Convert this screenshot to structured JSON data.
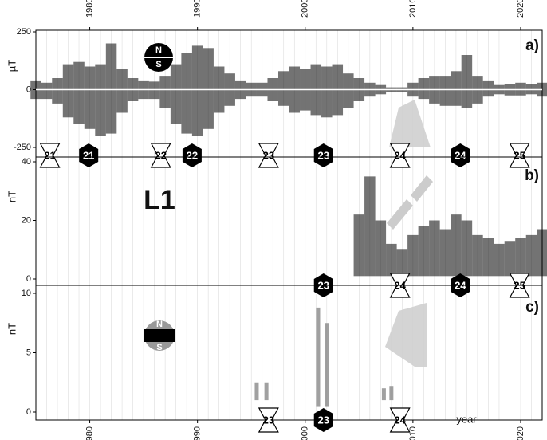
{
  "chart_data": [
    {
      "type": "range",
      "panel_label": "a)",
      "y_label": "µT",
      "color": "#000000",
      "xlim": [
        1975,
        2022
      ],
      "xticks": [
        1980,
        1990,
        2000,
        2010,
        2020
      ],
      "ylim": [
        -250,
        250
      ],
      "yticks": [
        -250,
        0,
        250
      ],
      "x": [
        1975,
        1976,
        1977,
        1978,
        1979,
        1980,
        1981,
        1982,
        1983,
        1984,
        1985,
        1986,
        1987,
        1988,
        1989,
        1990,
        1991,
        1992,
        1993,
        1994,
        1995,
        1996,
        1997,
        1998,
        1999,
        2000,
        2001,
        2002,
        2003,
        2004,
        2005,
        2006,
        2007,
        2008,
        2009,
        2010,
        2011,
        2012,
        2013,
        2014,
        2015,
        2016,
        2017,
        2018,
        2019,
        2020,
        2021,
        2022
      ],
      "low": [
        -40,
        -40,
        -60,
        -120,
        -150,
        -170,
        -200,
        -190,
        -100,
        -50,
        -40,
        -40,
        -80,
        -150,
        -190,
        -200,
        -170,
        -100,
        -70,
        -40,
        -30,
        -30,
        -50,
        -70,
        -100,
        -90,
        -110,
        -120,
        -110,
        -80,
        -50,
        -30,
        -20,
        -10,
        -10,
        -30,
        -40,
        -60,
        -70,
        -70,
        -80,
        -60,
        -30,
        -20,
        -25,
        -25,
        -20,
        -30
      ],
      "high": [
        40,
        30,
        50,
        110,
        120,
        100,
        110,
        200,
        90,
        50,
        40,
        35,
        60,
        110,
        160,
        190,
        180,
        100,
        70,
        40,
        30,
        30,
        50,
        80,
        100,
        90,
        110,
        100,
        110,
        70,
        50,
        30,
        20,
        10,
        10,
        30,
        50,
        60,
        60,
        80,
        150,
        60,
        40,
        20,
        25,
        30,
        25,
        30
      ],
      "minima": {
        "x": [
          1976.3,
          1986.6,
          1996.6,
          2008.8,
          2019.9
        ],
        "labels": [
          "21",
          "22",
          "23",
          "24",
          "25"
        ]
      },
      "maxima": {
        "x": [
          1979.9,
          1989.5,
          2001.7,
          2014.4
        ],
        "labels": [
          "21",
          "22",
          "23",
          "24"
        ]
      }
    },
    {
      "type": "range",
      "panel_label": "b)",
      "y_label": "nT",
      "annotation": "L1",
      "color": "#000000",
      "xlim": [
        1975,
        2022
      ],
      "ylim": [
        0,
        40
      ],
      "yticks": [
        0,
        20,
        40
      ],
      "x": [
        2005,
        2006,
        2007,
        2008,
        2009,
        2010,
        2011,
        2012,
        2013,
        2014,
        2015,
        2016,
        2017,
        2018,
        2019,
        2020,
        2021,
        2022
      ],
      "low": [
        1,
        1,
        1,
        1,
        1,
        1,
        1,
        1,
        1,
        1,
        1,
        1,
        1,
        1,
        1,
        1,
        1,
        1
      ],
      "high": [
        22,
        35,
        20,
        12,
        10,
        15,
        18,
        20,
        17,
        22,
        20,
        15,
        14,
        12,
        13,
        14,
        15,
        17
      ],
      "minima": {
        "x": [
          2008.8,
          2019.9
        ],
        "labels": [
          "24",
          "25"
        ]
      },
      "maxima": {
        "x": [
          2001.7,
          2014.4
        ],
        "labels": [
          "23",
          "24"
        ]
      }
    },
    {
      "type": "range",
      "panel_label": "c)",
      "y_label": "nT",
      "x_label": "year",
      "color": "#888888",
      "xlim": [
        1975,
        2022
      ],
      "xticks": [
        1980,
        1990,
        2000,
        2010,
        2020
      ],
      "ylim": [
        0,
        10
      ],
      "yticks": [
        0,
        5,
        10
      ],
      "x": [
        1995.5,
        1996.4,
        2001.2,
        2002.0,
        2007.3,
        2008.0
      ],
      "low": [
        1,
        1,
        0.5,
        0.5,
        1,
        1
      ],
      "high": [
        2.5,
        2.5,
        8.8,
        7.5,
        2,
        2.2
      ],
      "minima": {
        "x": [
          1996.6,
          2008.8
        ],
        "labels": [
          "23",
          "24"
        ]
      },
      "maxima": {
        "x": [
          2001.7
        ],
        "labels": [
          "23"
        ]
      }
    }
  ]
}
